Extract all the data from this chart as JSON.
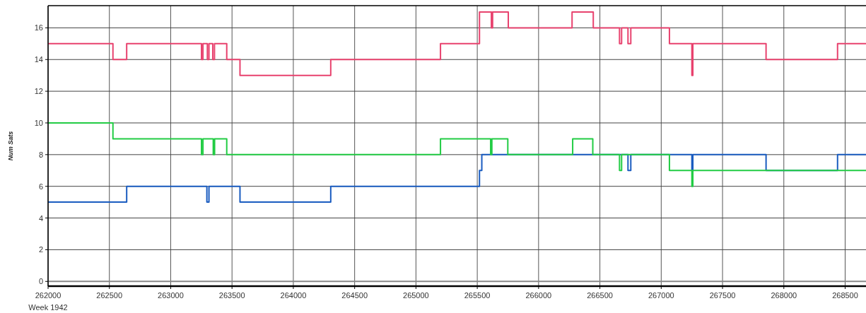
{
  "chart_data": {
    "type": "step",
    "xlabel": "Week 1942",
    "ylabel": "Num Sats",
    "xlim": [
      262000,
      268670
    ],
    "ylim": [
      -0.3,
      17.4
    ],
    "xticks": [
      262000,
      262500,
      263000,
      263500,
      264000,
      264500,
      265000,
      265500,
      266000,
      266500,
      267000,
      267500,
      268000,
      268500
    ],
    "yticks": [
      0,
      2,
      4,
      6,
      8,
      10,
      12,
      14,
      16
    ],
    "grid": true,
    "series": [
      {
        "color": "#1a5cc0",
        "x": [
          262000,
          262641,
          263295,
          263312,
          263565,
          264305,
          265518,
          265537,
          266729,
          266752,
          267250,
          267258,
          267855,
          268438,
          268670
        ],
        "values": [
          5,
          6,
          5,
          6,
          5,
          6,
          7,
          8,
          7,
          8,
          7,
          8,
          7,
          8,
          8
        ]
      },
      {
        "color": "#e8426e",
        "x": [
          262000,
          262529,
          262641,
          263251,
          263263,
          263299,
          263312,
          263343,
          263357,
          263457,
          263565,
          264305,
          265200,
          265518,
          265615,
          265625,
          265753,
          266273,
          266446,
          266660,
          266677,
          266729,
          266752,
          267067,
          267250,
          267258,
          267855,
          268438,
          268670
        ],
        "values": [
          15,
          14,
          15,
          14,
          15,
          14,
          15,
          14,
          15,
          14,
          13,
          14,
          15,
          17,
          16,
          17,
          16,
          17,
          16,
          15,
          16,
          15,
          16,
          15,
          13,
          15,
          14,
          15,
          15
        ]
      },
      {
        "color": "#22cc44",
        "x": [
          262000,
          262529,
          263251,
          263263,
          263347,
          263358,
          263457,
          265200,
          265609,
          265619,
          265749,
          266278,
          266442,
          266660,
          266677,
          267067,
          267250,
          267258,
          268670
        ],
        "values": [
          10,
          9,
          8,
          9,
          8,
          9,
          8,
          9,
          8,
          9,
          8,
          9,
          8,
          7,
          8,
          7,
          6,
          7,
          7
        ]
      }
    ]
  }
}
